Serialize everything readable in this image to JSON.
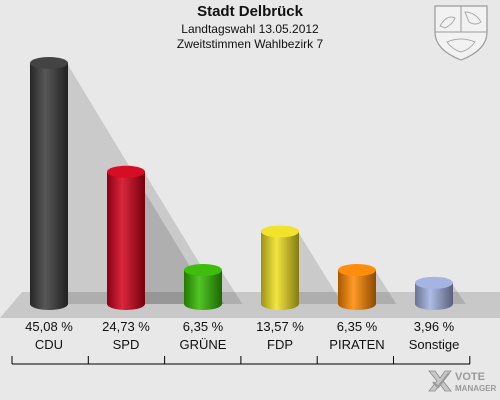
{
  "header": {
    "title": "Stadt Delbrück",
    "subtitle1": "Landtagswahl 13.05.2012",
    "subtitle2": "Zweitstimmen Wahlbezirk 7"
  },
  "brand": {
    "line1": "VOTE",
    "line2": "MANAGER"
  },
  "chart_data": {
    "type": "bar",
    "categories": [
      "CDU",
      "SPD",
      "GRÜNE",
      "FDP",
      "PIRATEN",
      "Sonstige"
    ],
    "values": [
      45.08,
      24.73,
      6.35,
      13.57,
      6.35,
      3.96
    ],
    "value_labels": [
      "45,08 %",
      "24,73 %",
      "6,35 %",
      "13,57 %",
      "6,35 %",
      "3,96 %"
    ],
    "colors": [
      "#3a3a3a",
      "#d4001a",
      "#33bb00",
      "#f0e020",
      "#ff8800",
      "#a0b0e0"
    ],
    "ylim": [
      0,
      45.08
    ],
    "grid": false,
    "legend": "none"
  }
}
